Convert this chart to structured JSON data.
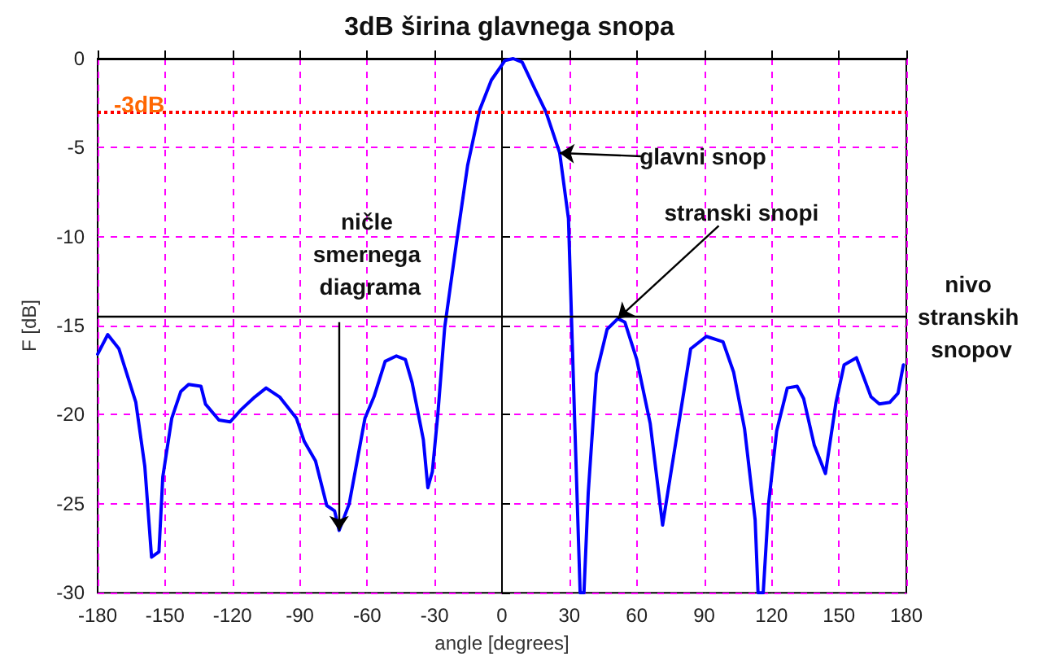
{
  "chart_data": {
    "type": "line",
    "title": "3dB širina glavnega snopa",
    "xlabel": "angle [degrees]",
    "ylabel": "F [dB]",
    "xlim": [
      -180,
      180
    ],
    "xticks": [
      -180,
      -150,
      -120,
      -90,
      -60,
      -30,
      0,
      30,
      60,
      90,
      120,
      150,
      180
    ],
    "ylim": [
      -30,
      0
    ],
    "yticks": [
      -30,
      -25,
      -20,
      -15,
      -10,
      -5,
      0
    ],
    "grid": true,
    "marker": "none",
    "line_style": "solid",
    "series": [
      {
        "color": "#0000ff",
        "x": [
          -180,
          -175.5,
          -170.5,
          -163,
          -159,
          -156,
          -152.7,
          -151,
          -147,
          -143,
          -139.5,
          -134,
          -132,
          -126,
          -121,
          -116,
          -110,
          -105,
          -99,
          -91.5,
          -88,
          -83,
          -78,
          -74.5,
          -72.5,
          -68,
          -61,
          -57,
          -52,
          -47,
          -43,
          -40,
          -35,
          -33,
          -31,
          -28.5,
          -25.5,
          -20,
          -15.3,
          -10,
          -4.7,
          1.4,
          5,
          9,
          15,
          19.6,
          25.7,
          29.6,
          32.4,
          34.8,
          36.5,
          38.4,
          42,
          46.8,
          51.6,
          54.7,
          60,
          66,
          71.5,
          76.8,
          84,
          91,
          98.4,
          103.1,
          108,
          112.7,
          114,
          116.3,
          118.7,
          122.3,
          127,
          131.4,
          134.3,
          139,
          144,
          148.7,
          152.3,
          157.8,
          164.3,
          168,
          172.7,
          176.3,
          178.7
        ],
        "values": [
          -16.6,
          -15.5,
          -16.3,
          -19.3,
          -22.9,
          -28,
          -27.7,
          -23.5,
          -20.2,
          -18.7,
          -18.3,
          -18.4,
          -19.4,
          -20.3,
          -20.4,
          -19.7,
          -19,
          -18.5,
          -19,
          -20.2,
          -21.5,
          -22.6,
          -25.1,
          -25.4,
          -26.5,
          -25,
          -20.2,
          -19,
          -17,
          -16.7,
          -16.9,
          -18.2,
          -21.4,
          -24.1,
          -23.2,
          -19.9,
          -15.1,
          -10.1,
          -6,
          -2.9,
          -1.2,
          -0.1,
          0,
          -0.2,
          -1.8,
          -3,
          -5.3,
          -9,
          -20.5,
          -30,
          -30,
          -24.4,
          -17.7,
          -15.2,
          -14.6,
          -14.8,
          -16.9,
          -20.5,
          -26.2,
          -22,
          -16.3,
          -15.6,
          -15.9,
          -17.6,
          -20.8,
          -25.9,
          -30,
          -30,
          -25,
          -20.9,
          -18.5,
          -18.4,
          -19.1,
          -21.7,
          -23.3,
          -19.3,
          -17.2,
          -16.8,
          -19,
          -19.4,
          -19.3,
          -18.8,
          -17.2
        ]
      }
    ],
    "ref_lines": [
      {
        "axis": "y",
        "value": -3,
        "label": "-3dB",
        "color": "#ff0000",
        "line_style": "dotted"
      },
      {
        "axis": "y",
        "value": -14.5,
        "label": "nivo stranskih snopov",
        "color": "#000000",
        "line_style": "solid"
      }
    ],
    "annotations": [
      {
        "text": "glavni snop",
        "x": 25.7,
        "y": -5.3
      },
      {
        "text": "stranski snopi",
        "x": 51.6,
        "y": -14.6
      },
      {
        "text": "ničle smernega diagrama",
        "x": -72.5,
        "y": -26.5
      }
    ]
  }
}
